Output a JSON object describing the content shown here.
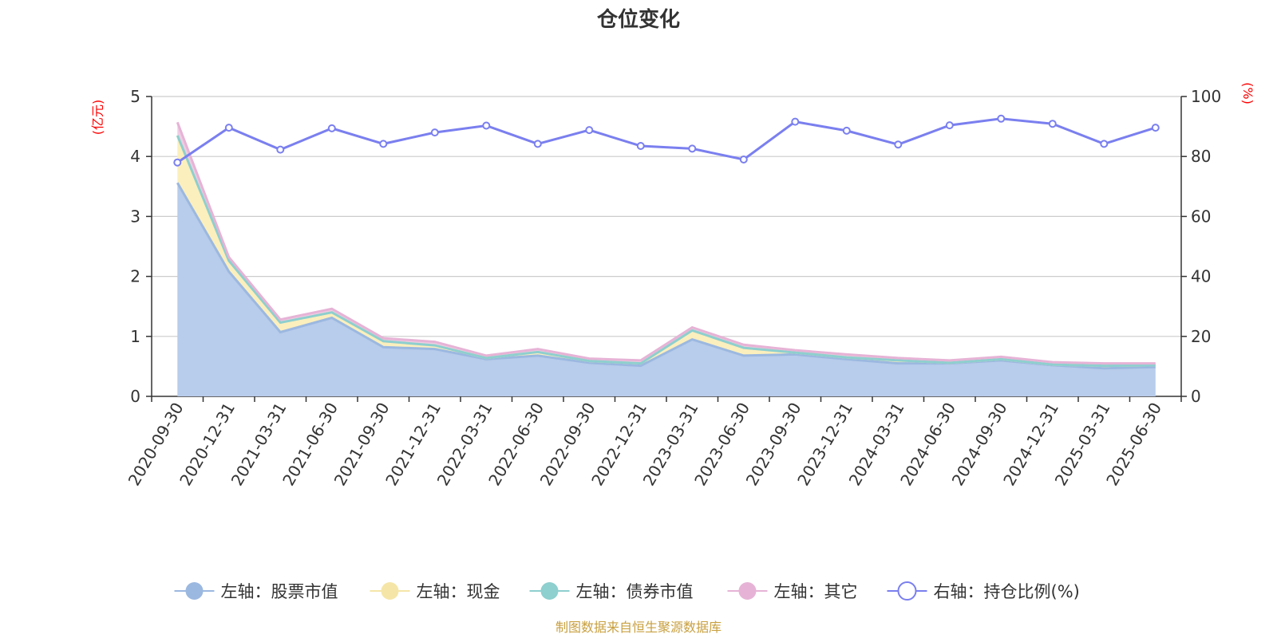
{
  "chart_data": {
    "type": "area",
    "title": "仓位变化",
    "left_unit": "(亿元)",
    "right_unit": "(%)",
    "source_note": "制图数据来自恒生聚源数据库",
    "categories": [
      "2020-09-30",
      "2020-12-31",
      "2021-03-31",
      "2021-06-30",
      "2021-09-30",
      "2021-12-31",
      "2022-03-31",
      "2022-06-30",
      "2022-09-30",
      "2022-12-31",
      "2023-03-31",
      "2023-06-30",
      "2023-09-30",
      "2023-12-31",
      "2024-03-31",
      "2024-06-30",
      "2024-09-30",
      "2024-12-31",
      "2025-03-31",
      "2025-06-30"
    ],
    "left_axis": {
      "min": 0,
      "max": 5,
      "ticks": [
        "0",
        "1",
        "2",
        "3",
        "4",
        "5"
      ]
    },
    "right_axis": {
      "min": 0,
      "max": 100,
      "ticks": [
        "0",
        "20",
        "40",
        "60",
        "80",
        "100"
      ]
    },
    "grid": true,
    "legend_position": "bottom",
    "series": [
      {
        "name": "左轴：股票市值",
        "axis": "left",
        "kind": "area",
        "color": "#9bb8e0",
        "fill": "#b8cceb",
        "values": [
          3.56,
          2.08,
          1.07,
          1.31,
          0.82,
          0.79,
          0.62,
          0.68,
          0.56,
          0.51,
          0.95,
          0.68,
          0.7,
          0.62,
          0.55,
          0.55,
          0.6,
          0.52,
          0.47,
          0.49
        ]
      },
      {
        "name": "左轴：现金",
        "axis": "left",
        "kind": "area",
        "color": "#f5e6a8",
        "fill": "#fbefbd",
        "values": [
          0.79,
          0.18,
          0.16,
          0.09,
          0.1,
          0.06,
          0.02,
          0.06,
          0.03,
          0.04,
          0.15,
          0.13,
          0.03,
          0.03,
          0.05,
          0.01,
          0.02,
          0.01,
          0.04,
          0.03
        ]
      },
      {
        "name": "左轴：债券市值",
        "axis": "left",
        "kind": "area",
        "color": "#8ecfcf",
        "fill": "#a8dcdc",
        "values": [
          0,
          0,
          0,
          0,
          0,
          0,
          0,
          0,
          0,
          0,
          0,
          0,
          0,
          0,
          0,
          0,
          0,
          0,
          0,
          0
        ]
      },
      {
        "name": "左轴：其它",
        "axis": "left",
        "kind": "area",
        "color": "#e6b3d6",
        "fill": "#f0cce4",
        "values": [
          0.22,
          0.06,
          0.05,
          0.06,
          0.05,
          0.06,
          0.04,
          0.05,
          0.04,
          0.05,
          0.05,
          0.05,
          0.04,
          0.05,
          0.04,
          0.04,
          0.04,
          0.04,
          0.04,
          0.03
        ]
      },
      {
        "name": "右轴：持仓比例(%)",
        "axis": "right",
        "kind": "line",
        "color": "#7a7fef",
        "values": [
          78,
          89.6,
          82.3,
          89.4,
          84.2,
          88.0,
          90.3,
          84.2,
          88.8,
          83.5,
          82.6,
          79.0,
          91.6,
          88.6,
          84.0,
          90.4,
          92.6,
          90.9,
          84.2,
          89.6
        ]
      }
    ]
  }
}
